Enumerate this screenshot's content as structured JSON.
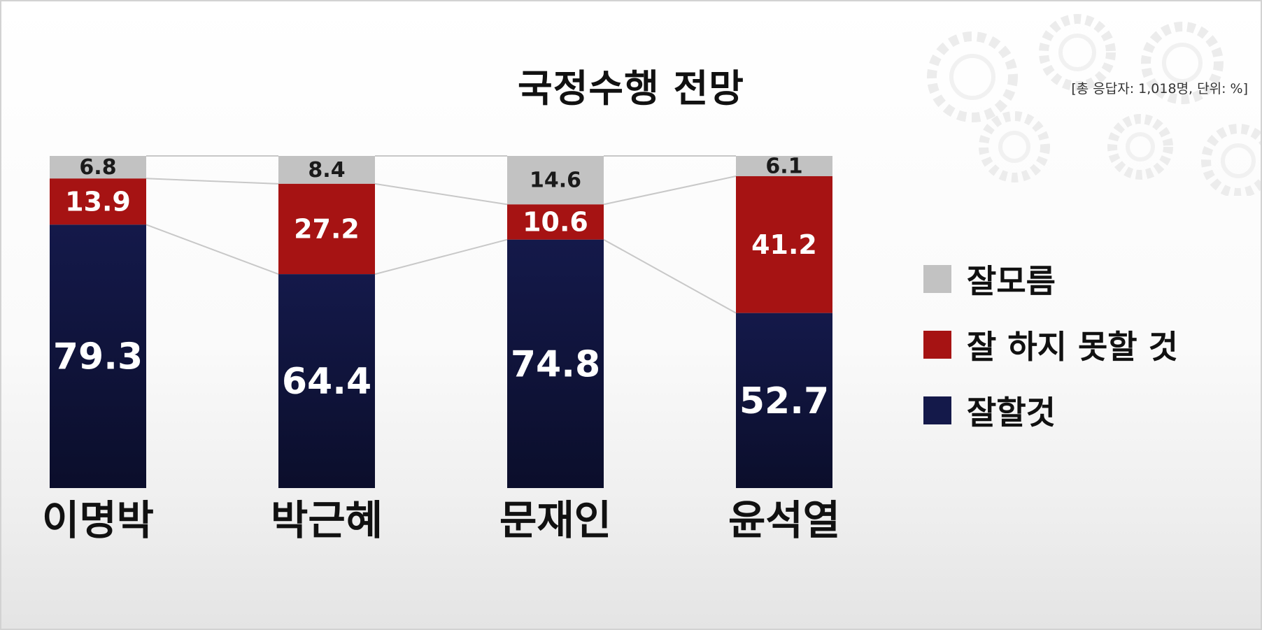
{
  "title": "국정수행 전망",
  "subtitle": "[총 응답자: 1,018명, 단위: %]",
  "colors": {
    "unknown": "#c2c2c2",
    "bad": "#a61313",
    "good": "#14194a",
    "good_bottom": "#0b0e2b",
    "connector": "#c8c8c8"
  },
  "chart_data": {
    "type": "bar",
    "stacked": true,
    "normalized": true,
    "categories": [
      "이명박",
      "박근혜",
      "문재인",
      "윤석열"
    ],
    "series": [
      {
        "name": "잘할것",
        "values": [
          79.3,
          64.4,
          74.8,
          52.7
        ]
      },
      {
        "name": "잘 하지 못할 것",
        "values": [
          13.9,
          27.2,
          10.6,
          41.2
        ]
      },
      {
        "name": "잘모름",
        "values": [
          6.8,
          8.4,
          14.6,
          6.1
        ]
      }
    ],
    "legend": [
      "잘모름",
      "잘 하지 못할 것",
      "잘할것"
    ],
    "legend_position": "right",
    "grid": false
  }
}
